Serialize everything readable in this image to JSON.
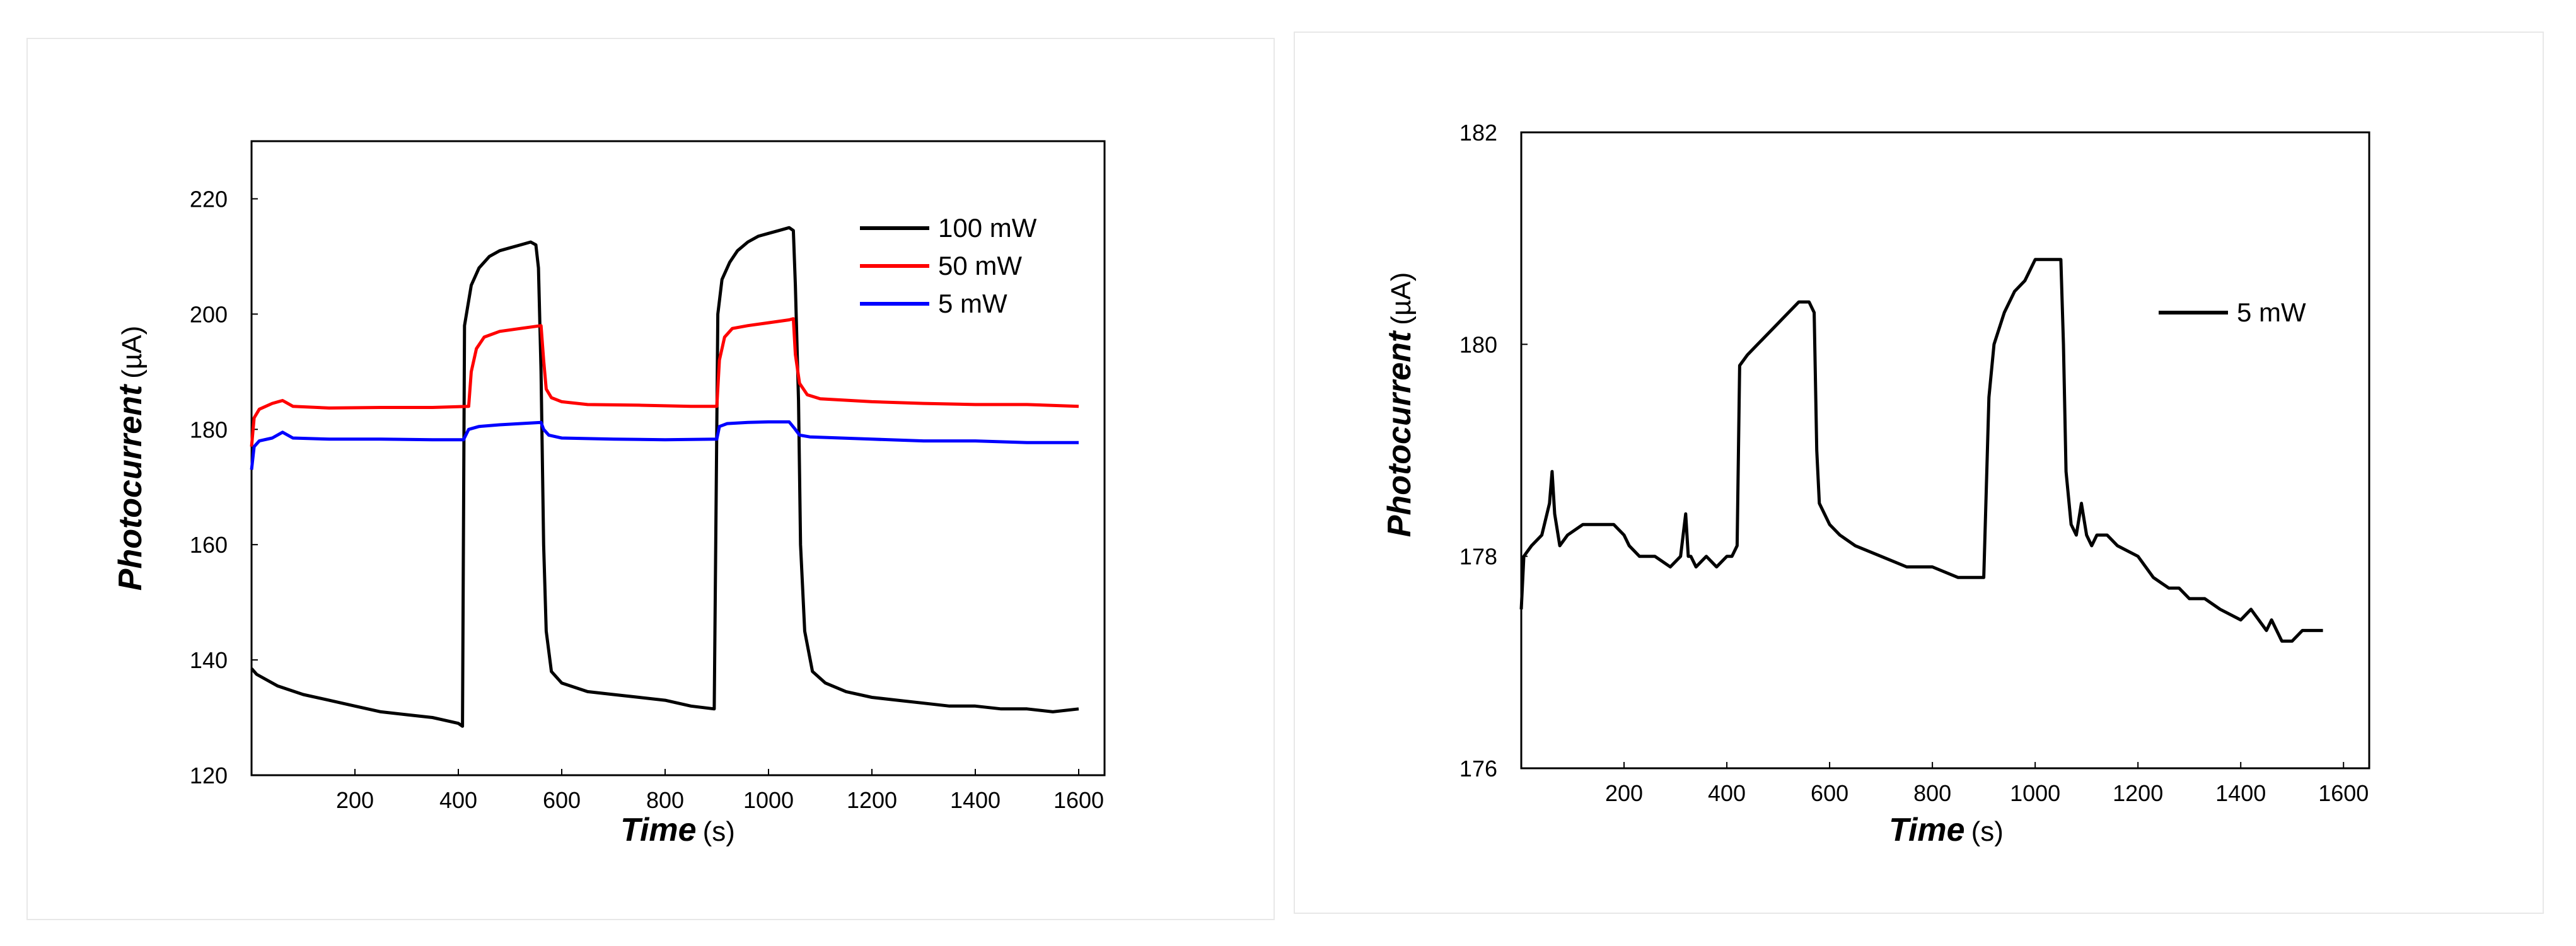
{
  "chart_data": [
    {
      "type": "line",
      "title": "",
      "xlabel": "Time",
      "xunit": "(s)",
      "ylabel": "Photocurrent",
      "yunit": "(µA)",
      "xlim": [
        0,
        1650
      ],
      "ylim": [
        120,
        230
      ],
      "xticks": [
        200,
        400,
        600,
        800,
        1000,
        1200,
        1400,
        1600
      ],
      "yticks": [
        120,
        140,
        160,
        180,
        200,
        220
      ],
      "legend_position": "top-right",
      "series": [
        {
          "name": "100 mW",
          "color": "#000000",
          "x": [
            0,
            10,
            50,
            100,
            150,
            200,
            250,
            300,
            350,
            400,
            408,
            412,
            425,
            440,
            460,
            480,
            500,
            520,
            540,
            550,
            555,
            560,
            565,
            570,
            580,
            600,
            650,
            700,
            750,
            800,
            850,
            895,
            902,
            910,
            925,
            940,
            960,
            980,
            1000,
            1020,
            1040,
            1048,
            1052,
            1058,
            1062,
            1070,
            1085,
            1110,
            1150,
            1200,
            1250,
            1300,
            1350,
            1400,
            1450,
            1500,
            1550,
            1600
          ],
          "values": [
            138.5,
            137.5,
            135.5,
            134,
            133,
            132,
            131,
            130.5,
            130,
            129,
            128.5,
            198,
            205,
            208,
            210,
            211,
            211.5,
            212,
            212.5,
            212,
            208,
            190,
            160,
            145,
            138,
            136,
            134.5,
            134,
            133.5,
            133,
            132,
            131.5,
            200,
            206,
            209,
            211,
            212.5,
            213.5,
            214,
            214.5,
            215,
            214.5,
            205,
            185,
            160,
            145,
            138,
            136,
            134.5,
            133.5,
            133,
            132.5,
            132,
            132,
            131.5,
            131.5,
            131,
            131.5
          ]
        },
        {
          "name": "50 mW",
          "color": "#ff0000",
          "x": [
            0,
            5,
            15,
            40,
            60,
            80,
            150,
            250,
            350,
            420,
            425,
            435,
            450,
            480,
            520,
            560,
            565,
            570,
            580,
            600,
            650,
            750,
            850,
            900,
            905,
            915,
            930,
            960,
            1000,
            1040,
            1048,
            1052,
            1060,
            1075,
            1100,
            1200,
            1300,
            1400,
            1500,
            1600
          ],
          "values": [
            177,
            182,
            183.5,
            184.5,
            185,
            184,
            183.7,
            183.8,
            183.8,
            184,
            190,
            194,
            196,
            197,
            197.5,
            198,
            192,
            187,
            185.5,
            184.8,
            184.3,
            184.2,
            184,
            184,
            192,
            196,
            197.5,
            198,
            198.5,
            199,
            199.2,
            193,
            188,
            186,
            185.3,
            184.8,
            184.5,
            184.3,
            184.3,
            184
          ]
        },
        {
          "name": "5 mW",
          "color": "#0000ff",
          "x": [
            0,
            5,
            15,
            40,
            60,
            80,
            150,
            250,
            350,
            410,
            420,
            440,
            480,
            520,
            560,
            565,
            575,
            600,
            700,
            800,
            900,
            905,
            920,
            960,
            1000,
            1040,
            1050,
            1060,
            1080,
            1200,
            1300,
            1400,
            1500,
            1600
          ],
          "values": [
            173,
            177,
            178,
            178.5,
            179.5,
            178.5,
            178.3,
            178.3,
            178.2,
            178.2,
            180,
            180.5,
            180.8,
            181,
            181.2,
            180,
            179,
            178.5,
            178.3,
            178.2,
            178.3,
            180.5,
            181,
            181.2,
            181.3,
            181.3,
            180.2,
            179,
            178.7,
            178.3,
            178,
            178,
            177.7,
            177.7
          ]
        }
      ]
    },
    {
      "type": "line",
      "title": "",
      "xlabel": "Time",
      "xunit": "(s)",
      "ylabel": "Photocurrent",
      "yunit": "(µA)",
      "xlim": [
        0,
        1650
      ],
      "ylim": [
        176,
        182
      ],
      "xticks": [
        200,
        400,
        600,
        800,
        1000,
        1200,
        1400,
        1600
      ],
      "yticks": [
        176,
        178,
        180,
        182
      ],
      "legend_position": "top-right",
      "series": [
        {
          "name": "5 mW",
          "color": "#000000",
          "x": [
            0,
            5,
            20,
            40,
            55,
            60,
            65,
            75,
            90,
            120,
            150,
            180,
            200,
            210,
            230,
            260,
            290,
            310,
            320,
            325,
            330,
            340,
            360,
            380,
            400,
            410,
            420,
            425,
            440,
            460,
            480,
            500,
            520,
            540,
            560,
            570,
            575,
            580,
            600,
            620,
            650,
            700,
            750,
            800,
            850,
            880,
            900,
            910,
            920,
            940,
            960,
            980,
            1000,
            1020,
            1040,
            1050,
            1055,
            1060,
            1070,
            1080,
            1090,
            1100,
            1110,
            1120,
            1140,
            1160,
            1200,
            1230,
            1260,
            1280,
            1300,
            1330,
            1360,
            1400,
            1420,
            1450,
            1460,
            1480,
            1500,
            1520,
            1540,
            1560
          ],
          "values": [
            177.5,
            178,
            178.1,
            178.2,
            178.5,
            178.8,
            178.4,
            178.1,
            178.2,
            178.3,
            178.3,
            178.3,
            178.2,
            178.1,
            178.0,
            178.0,
            177.9,
            178.0,
            178.4,
            178.0,
            178.0,
            177.9,
            178.0,
            177.9,
            178.0,
            178.0,
            178.1,
            179.8,
            179.9,
            180.0,
            180.1,
            180.2,
            180.3,
            180.4,
            180.4,
            180.3,
            179.0,
            178.5,
            178.3,
            178.2,
            178.1,
            178.0,
            177.9,
            177.9,
            177.8,
            177.8,
            177.8,
            179.5,
            180.0,
            180.3,
            180.5,
            180.6,
            180.8,
            180.8,
            180.8,
            180.8,
            180.0,
            178.8,
            178.3,
            178.2,
            178.5,
            178.2,
            178.1,
            178.2,
            178.2,
            178.1,
            178.0,
            177.8,
            177.7,
            177.7,
            177.6,
            177.6,
            177.5,
            177.4,
            177.5,
            177.3,
            177.4,
            177.2,
            177.2,
            177.3,
            177.3,
            177.3
          ]
        }
      ]
    }
  ]
}
